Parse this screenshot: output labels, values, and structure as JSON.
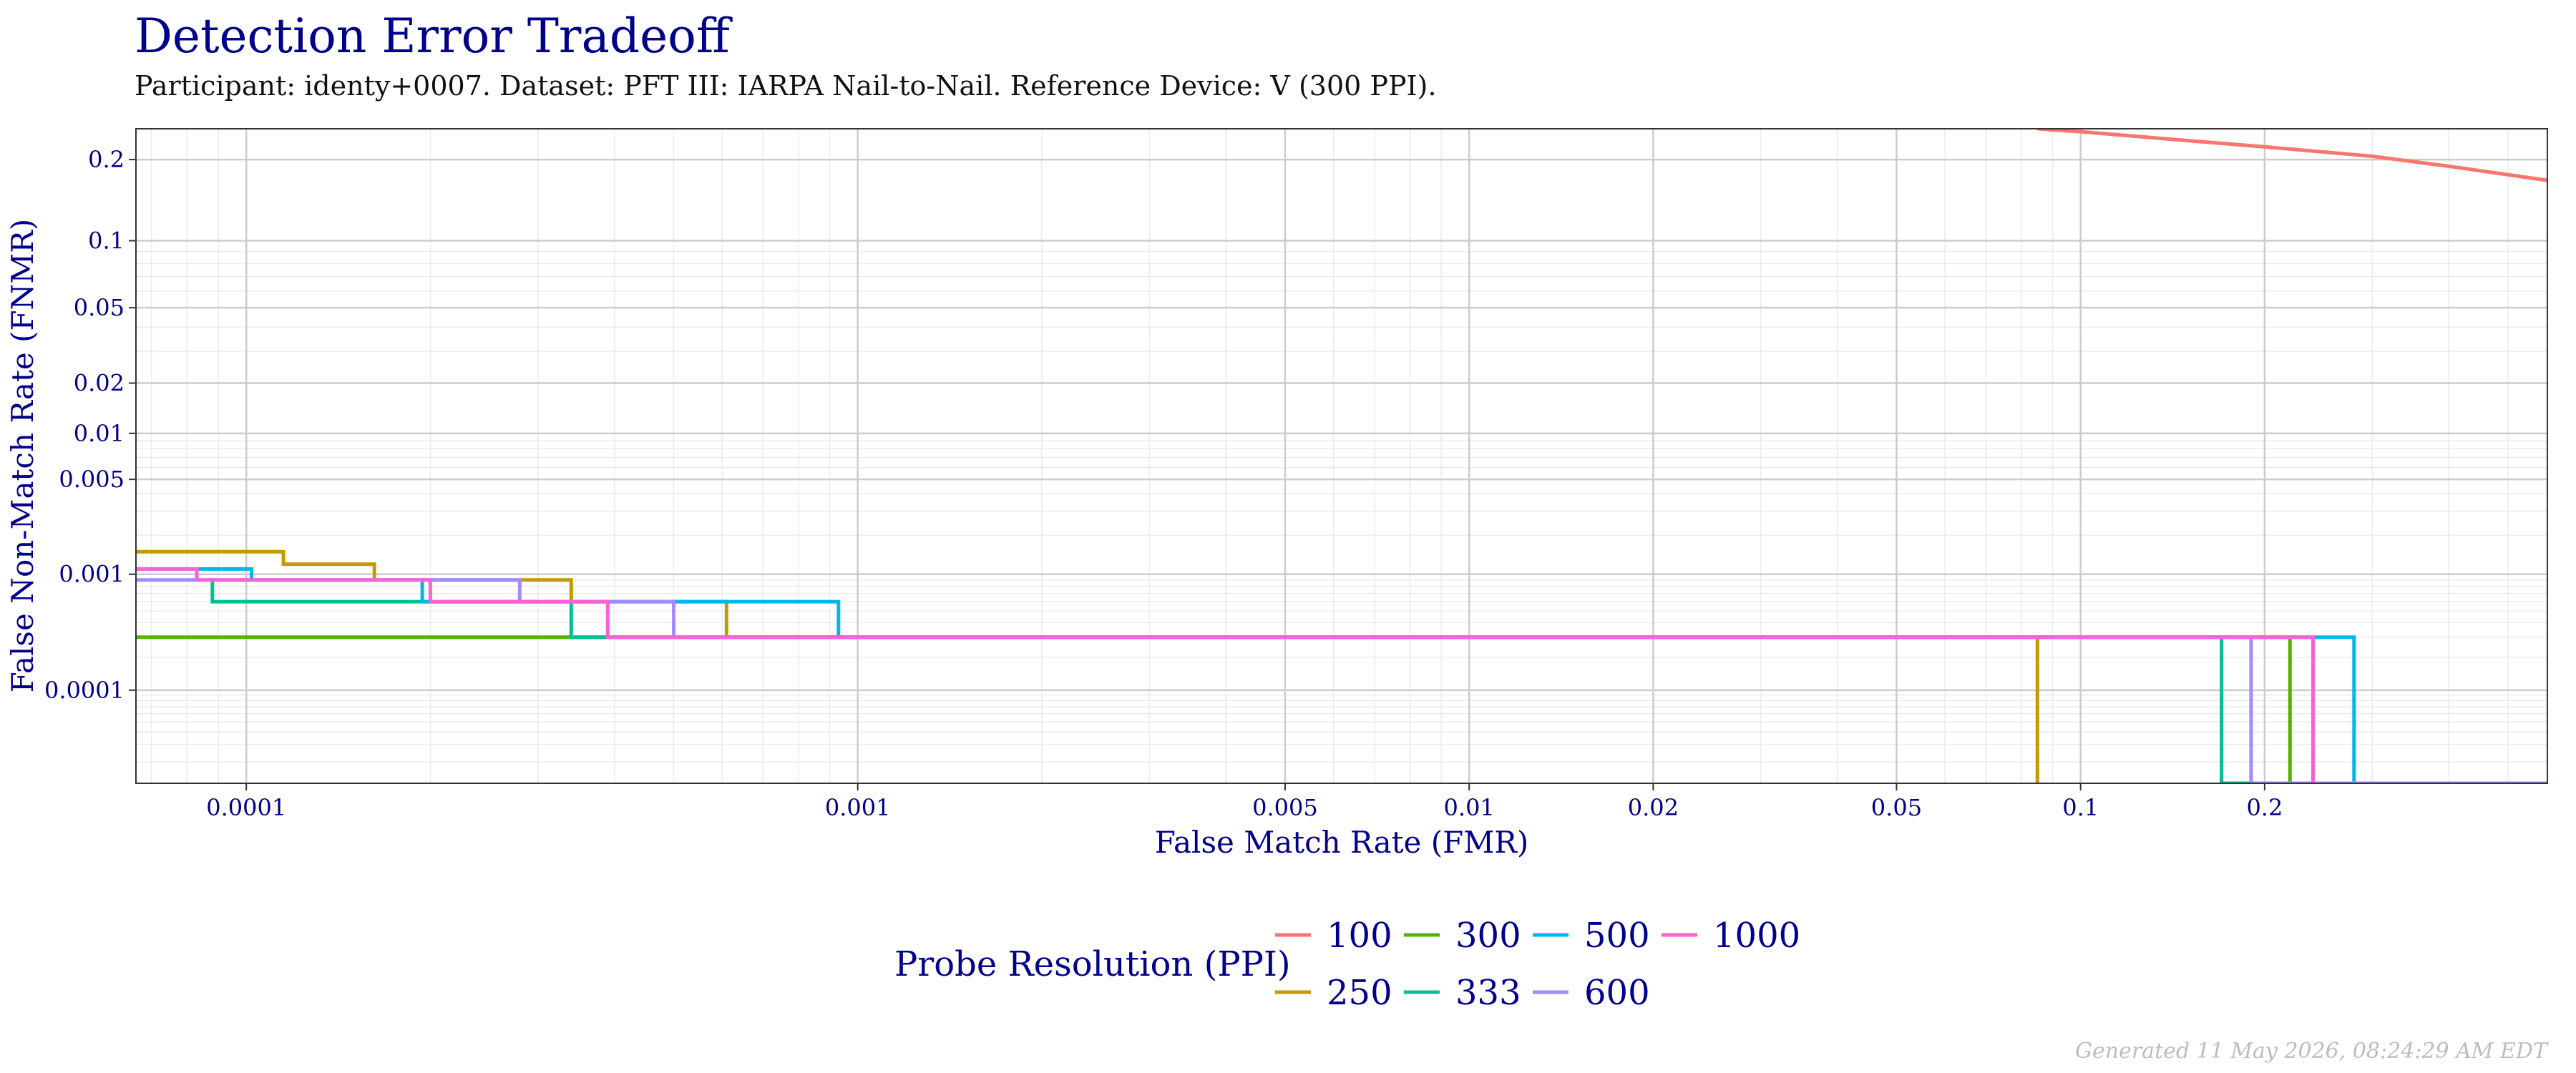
{
  "chart_data": {
    "type": "line",
    "title": "Detection Error Tradeoff",
    "subtitle": "Participant: identy+0007. Dataset: PFT III: IARPA Nail-to-Nail. Reference Device: V (300 PPI).",
    "xlabel": "False Match Rate (FMR)",
    "ylabel": "False Non-Match Rate (FNMR)",
    "xscale": "log",
    "yscale": "probit",
    "xlim": [
      6.6e-05,
      0.58
    ],
    "ylim": [
      1.2e-05,
      0.25
    ],
    "x_ticks": [
      0.0001,
      0.001,
      0.005,
      0.01,
      0.02,
      0.05,
      0.1,
      0.2
    ],
    "x_tick_labels": [
      "0.0001",
      "0.001",
      "0.005",
      "0.01",
      "0.02",
      "0.05",
      "0.1",
      "0.2"
    ],
    "y_ticks": [
      0.0001,
      0.001,
      0.005,
      0.01,
      0.02,
      0.05,
      0.1,
      0.2
    ],
    "y_tick_labels": [
      "0.0001",
      "0.001",
      "0.005",
      "0.01",
      "0.02",
      "0.05",
      "0.1",
      "0.2"
    ],
    "grid": true,
    "legend": {
      "title": "Probe Resolution (PPI)",
      "position": "bottom"
    },
    "series": [
      {
        "name": "100",
        "color": "#f8766d",
        "step": false,
        "points": [
          [
            0.085,
            0.25
          ],
          [
            0.1,
            0.245
          ],
          [
            0.15,
            0.23
          ],
          [
            0.2,
            0.22
          ],
          [
            0.3,
            0.205
          ],
          [
            0.4,
            0.19
          ],
          [
            0.58,
            0.17
          ]
        ]
      },
      {
        "name": "250",
        "color": "#c49a00",
        "step": true,
        "points": [
          [
            6.6e-05,
            0.0015
          ],
          [
            0.000115,
            0.0015
          ],
          [
            0.000115,
            0.0012
          ],
          [
            0.000162,
            0.0012
          ],
          [
            0.000162,
            0.0009
          ],
          [
            0.00034,
            0.0009
          ],
          [
            0.00034,
            0.0006
          ],
          [
            0.00061,
            0.0006
          ],
          [
            0.00061,
            0.0003
          ],
          [
            0.085,
            0.0003
          ],
          [
            0.085,
            1.2e-05
          ]
        ]
      },
      {
        "name": "300",
        "color": "#53b400",
        "step": true,
        "points": [
          [
            6.6e-05,
            0.0003
          ],
          [
            0.00034,
            0.0003
          ],
          [
            0.00034,
            0.0003
          ],
          [
            0.22,
            0.0003
          ],
          [
            0.22,
            1.2e-05
          ]
        ]
      },
      {
        "name": "333",
        "color": "#00c094",
        "step": true,
        "points": [
          [
            8.8e-05,
            0.0009
          ],
          [
            8.8e-05,
            0.0006
          ],
          [
            0.00034,
            0.0006
          ],
          [
            0.00034,
            0.0003
          ],
          [
            0.17,
            0.0003
          ],
          [
            0.17,
            1.2e-05
          ],
          [
            0.58,
            1.2e-05
          ]
        ]
      },
      {
        "name": "500",
        "color": "#00b6eb",
        "step": true,
        "points": [
          [
            6.6e-05,
            0.0011
          ],
          [
            0.000102,
            0.0011
          ],
          [
            0.000102,
            0.0009
          ],
          [
            0.000194,
            0.0009
          ],
          [
            0.000194,
            0.0006
          ],
          [
            0.00093,
            0.0006
          ],
          [
            0.00093,
            0.0003
          ],
          [
            0.28,
            0.0003
          ],
          [
            0.28,
            1.2e-05
          ]
        ]
      },
      {
        "name": "600",
        "color": "#a58aff",
        "step": true,
        "points": [
          [
            6.6e-05,
            0.0009
          ],
          [
            0.00028,
            0.0009
          ],
          [
            0.00028,
            0.0006
          ],
          [
            0.0005,
            0.0006
          ],
          [
            0.0005,
            0.0003
          ],
          [
            0.19,
            0.0003
          ],
          [
            0.19,
            1.2e-05
          ],
          [
            0.58,
            1.2e-05
          ]
        ]
      },
      {
        "name": "1000",
        "color": "#fb61d7",
        "step": true,
        "points": [
          [
            6.6e-05,
            0.0011
          ],
          [
            8.3e-05,
            0.0011
          ],
          [
            8.3e-05,
            0.0009
          ],
          [
            0.0002,
            0.0009
          ],
          [
            0.0002,
            0.0006
          ],
          [
            0.00039,
            0.0006
          ],
          [
            0.00039,
            0.0003
          ],
          [
            0.24,
            0.0003
          ],
          [
            0.24,
            1.2e-05
          ]
        ]
      }
    ]
  },
  "footer": "Generated 11 May 2026, 08:24:29 AM EDT"
}
